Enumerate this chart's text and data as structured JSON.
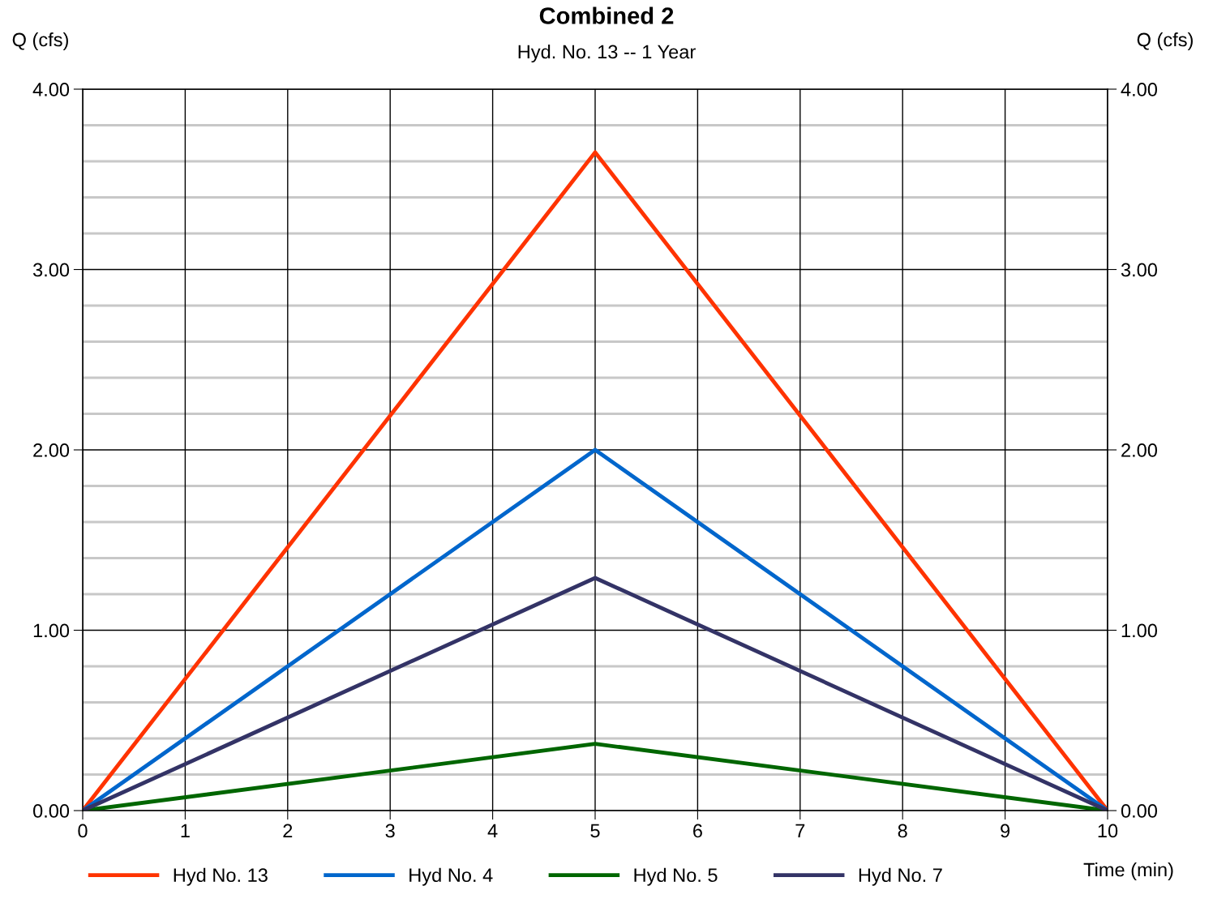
{
  "chart_data": {
    "type": "line",
    "title": "Combined 2",
    "subtitle": "Hyd. No. 13 -- 1 Year",
    "xlabel": "Time (min)",
    "ylabel": "Q (cfs)",
    "y2label": "Q (cfs)",
    "x": [
      0,
      5,
      10
    ],
    "series": [
      {
        "name": "Hyd No. 13",
        "color": "#ff3300",
        "values": [
          0,
          3.65,
          0
        ]
      },
      {
        "name": "Hyd No. 4",
        "color": "#0066cc",
        "values": [
          0,
          2.0,
          0
        ]
      },
      {
        "name": "Hyd No. 5",
        "color": "#006600",
        "values": [
          0,
          0.37,
          0
        ]
      },
      {
        "name": "Hyd No. 7",
        "color": "#333366",
        "values": [
          0,
          1.29,
          0
        ]
      }
    ],
    "xlim": [
      0,
      10
    ],
    "xticks": [
      0,
      1,
      2,
      3,
      4,
      5,
      6,
      7,
      8,
      9,
      10
    ],
    "ylim": [
      0,
      4
    ],
    "yticks": [
      {
        "value": 0,
        "label": "0.00"
      },
      {
        "value": 0.2,
        "label": null
      },
      {
        "value": 0.4,
        "label": null
      },
      {
        "value": 0.6,
        "label": null
      },
      {
        "value": 0.8,
        "label": null
      },
      {
        "value": 1,
        "label": "1.00"
      },
      {
        "value": 1.2,
        "label": null
      },
      {
        "value": 1.4,
        "label": null
      },
      {
        "value": 1.6,
        "label": null
      },
      {
        "value": 1.8,
        "label": null
      },
      {
        "value": 2,
        "label": "2.00"
      },
      {
        "value": 2.2,
        "label": null
      },
      {
        "value": 2.4,
        "label": null
      },
      {
        "value": 2.6,
        "label": null
      },
      {
        "value": 2.8,
        "label": null
      },
      {
        "value": 3,
        "label": "3.00"
      },
      {
        "value": 3.2,
        "label": null
      },
      {
        "value": 3.4,
        "label": null
      },
      {
        "value": 3.6,
        "label": null
      },
      {
        "value": 3.8,
        "label": null
      },
      {
        "value": 4,
        "label": "4.00"
      }
    ],
    "y2lim": [
      0,
      4
    ],
    "y2ticks": [
      {
        "value": 0,
        "label": "0.00"
      },
      {
        "value": 1,
        "label": "1.00"
      },
      {
        "value": 2,
        "label": "2.00"
      },
      {
        "value": 3,
        "label": "3.00"
      },
      {
        "value": 4,
        "label": "4.00"
      }
    ],
    "grid": true,
    "legend": "bottom",
    "marker": "none",
    "line_style": "solid"
  }
}
